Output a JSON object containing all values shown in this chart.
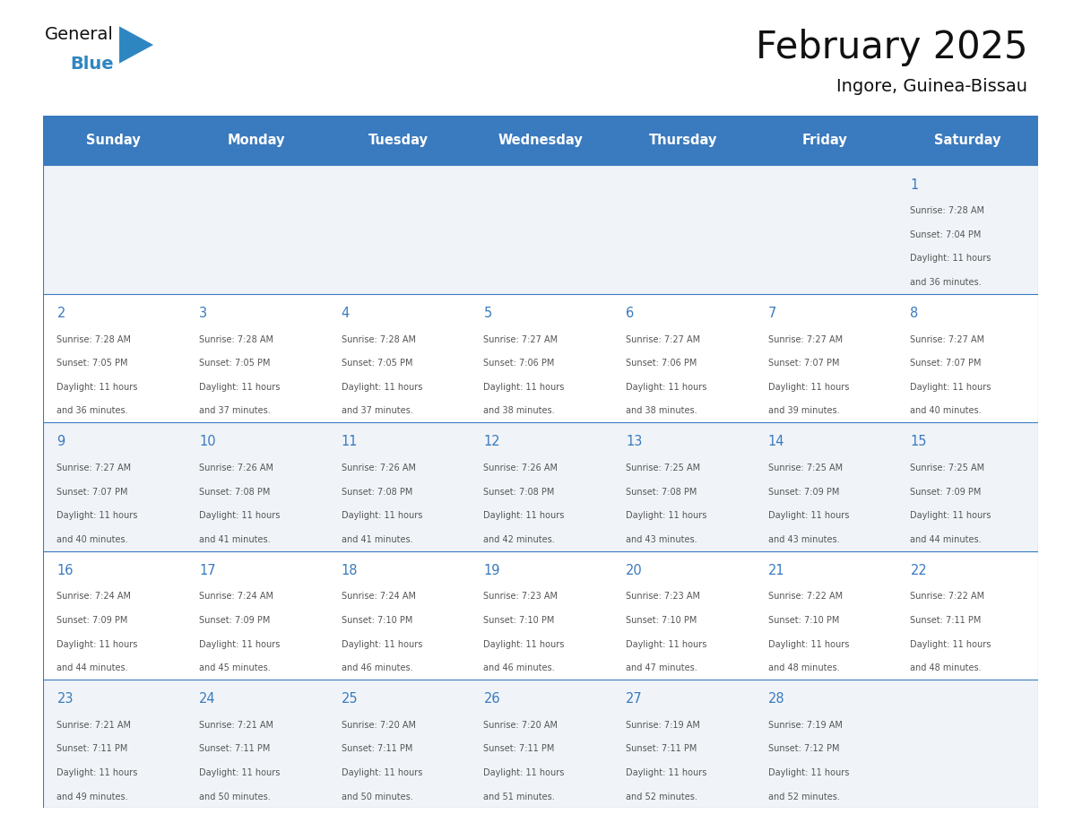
{
  "title": "February 2025",
  "subtitle": "Ingore, Guinea-Bissau",
  "header_bg": "#3a7abf",
  "header_text_color": "#ffffff",
  "days_of_week": [
    "Sunday",
    "Monday",
    "Tuesday",
    "Wednesday",
    "Thursday",
    "Friday",
    "Saturday"
  ],
  "row_bg_odd": "#f0f4f8",
  "row_bg_even": "#ffffff",
  "cell_border_color": "#3a7abf",
  "day_number_color": "#3a7abf",
  "info_text_color": "#555555",
  "calendar_data": [
    [
      null,
      null,
      null,
      null,
      null,
      null,
      {
        "day": 1,
        "sunrise": "7:28 AM",
        "sunset": "7:04 PM",
        "daylight": "11 hours and 36 minutes."
      }
    ],
    [
      {
        "day": 2,
        "sunrise": "7:28 AM",
        "sunset": "7:05 PM",
        "daylight": "11 hours and 36 minutes."
      },
      {
        "day": 3,
        "sunrise": "7:28 AM",
        "sunset": "7:05 PM",
        "daylight": "11 hours and 37 minutes."
      },
      {
        "day": 4,
        "sunrise": "7:28 AM",
        "sunset": "7:05 PM",
        "daylight": "11 hours and 37 minutes."
      },
      {
        "day": 5,
        "sunrise": "7:27 AM",
        "sunset": "7:06 PM",
        "daylight": "11 hours and 38 minutes."
      },
      {
        "day": 6,
        "sunrise": "7:27 AM",
        "sunset": "7:06 PM",
        "daylight": "11 hours and 38 minutes."
      },
      {
        "day": 7,
        "sunrise": "7:27 AM",
        "sunset": "7:07 PM",
        "daylight": "11 hours and 39 minutes."
      },
      {
        "day": 8,
        "sunrise": "7:27 AM",
        "sunset": "7:07 PM",
        "daylight": "11 hours and 40 minutes."
      }
    ],
    [
      {
        "day": 9,
        "sunrise": "7:27 AM",
        "sunset": "7:07 PM",
        "daylight": "11 hours and 40 minutes."
      },
      {
        "day": 10,
        "sunrise": "7:26 AM",
        "sunset": "7:08 PM",
        "daylight": "11 hours and 41 minutes."
      },
      {
        "day": 11,
        "sunrise": "7:26 AM",
        "sunset": "7:08 PM",
        "daylight": "11 hours and 41 minutes."
      },
      {
        "day": 12,
        "sunrise": "7:26 AM",
        "sunset": "7:08 PM",
        "daylight": "11 hours and 42 minutes."
      },
      {
        "day": 13,
        "sunrise": "7:25 AM",
        "sunset": "7:08 PM",
        "daylight": "11 hours and 43 minutes."
      },
      {
        "day": 14,
        "sunrise": "7:25 AM",
        "sunset": "7:09 PM",
        "daylight": "11 hours and 43 minutes."
      },
      {
        "day": 15,
        "sunrise": "7:25 AM",
        "sunset": "7:09 PM",
        "daylight": "11 hours and 44 minutes."
      }
    ],
    [
      {
        "day": 16,
        "sunrise": "7:24 AM",
        "sunset": "7:09 PM",
        "daylight": "11 hours and 44 minutes."
      },
      {
        "day": 17,
        "sunrise": "7:24 AM",
        "sunset": "7:09 PM",
        "daylight": "11 hours and 45 minutes."
      },
      {
        "day": 18,
        "sunrise": "7:24 AM",
        "sunset": "7:10 PM",
        "daylight": "11 hours and 46 minutes."
      },
      {
        "day": 19,
        "sunrise": "7:23 AM",
        "sunset": "7:10 PM",
        "daylight": "11 hours and 46 minutes."
      },
      {
        "day": 20,
        "sunrise": "7:23 AM",
        "sunset": "7:10 PM",
        "daylight": "11 hours and 47 minutes."
      },
      {
        "day": 21,
        "sunrise": "7:22 AM",
        "sunset": "7:10 PM",
        "daylight": "11 hours and 48 minutes."
      },
      {
        "day": 22,
        "sunrise": "7:22 AM",
        "sunset": "7:11 PM",
        "daylight": "11 hours and 48 minutes."
      }
    ],
    [
      {
        "day": 23,
        "sunrise": "7:21 AM",
        "sunset": "7:11 PM",
        "daylight": "11 hours and 49 minutes."
      },
      {
        "day": 24,
        "sunrise": "7:21 AM",
        "sunset": "7:11 PM",
        "daylight": "11 hours and 50 minutes."
      },
      {
        "day": 25,
        "sunrise": "7:20 AM",
        "sunset": "7:11 PM",
        "daylight": "11 hours and 50 minutes."
      },
      {
        "day": 26,
        "sunrise": "7:20 AM",
        "sunset": "7:11 PM",
        "daylight": "11 hours and 51 minutes."
      },
      {
        "day": 27,
        "sunrise": "7:19 AM",
        "sunset": "7:11 PM",
        "daylight": "11 hours and 52 minutes."
      },
      {
        "day": 28,
        "sunrise": "7:19 AM",
        "sunset": "7:12 PM",
        "daylight": "11 hours and 52 minutes."
      },
      null
    ]
  ],
  "logo_text_general": "General",
  "logo_text_blue": "Blue",
  "logo_blue_color": "#2e86c1",
  "logo_triangle_color": "#2e86c1",
  "fig_width": 11.88,
  "fig_height": 9.18
}
